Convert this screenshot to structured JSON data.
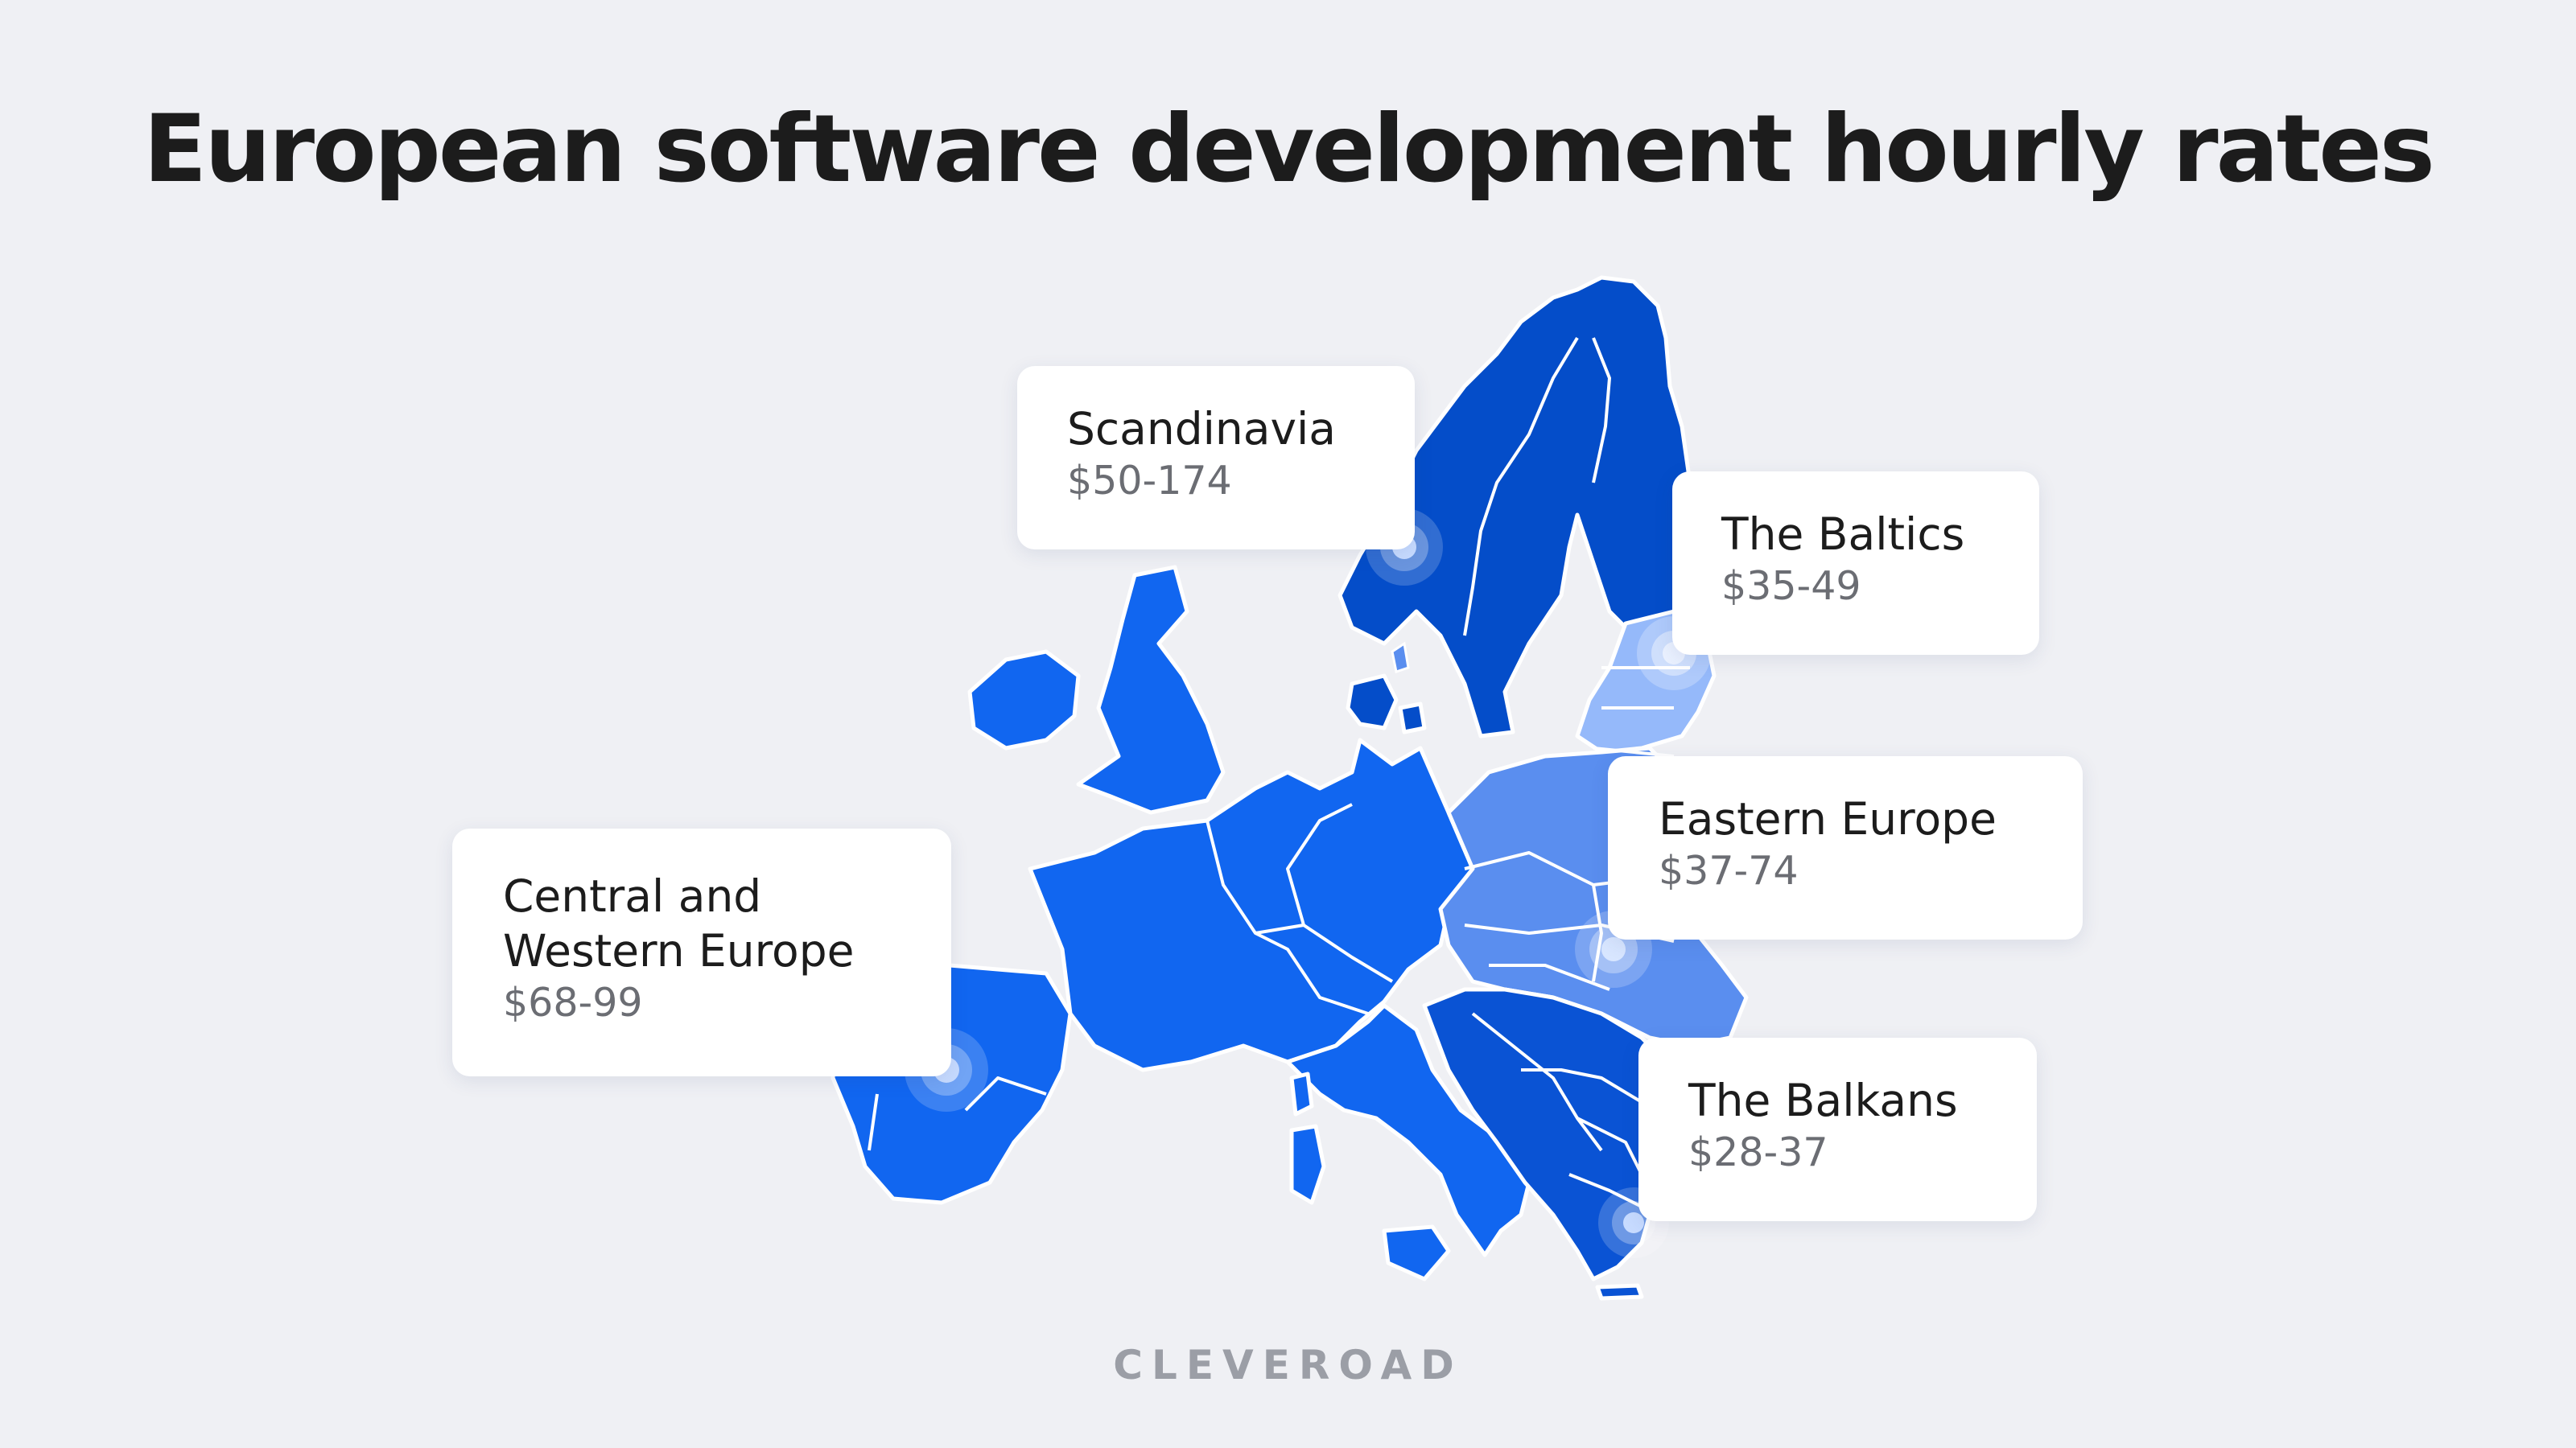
{
  "title": "European software development hourly rates",
  "logo_text": "CLEVEROAD",
  "colors": {
    "background": "#eff0f4",
    "central_western": "#1166f0",
    "scandinavia": "#044dc9",
    "balkans": "#0a53d4",
    "eastern": "#5a8eef",
    "baltics": "#95b9fa",
    "border": "#ffffff",
    "pin": "#c7dbff"
  },
  "regions": [
    {
      "id": "scandinavia",
      "name": "Scandinavia",
      "rate": "$50-174"
    },
    {
      "id": "baltics",
      "name": "The Baltics",
      "rate": "$35-49"
    },
    {
      "id": "eastern",
      "name": "Eastern Europe",
      "rate": "$37-74"
    },
    {
      "id": "central-western",
      "name_line1": "Central and",
      "name_line2": "Western Europe",
      "rate": "$68-99"
    },
    {
      "id": "balkans",
      "name": "The Balkans",
      "rate": "$28-37"
    }
  ]
}
